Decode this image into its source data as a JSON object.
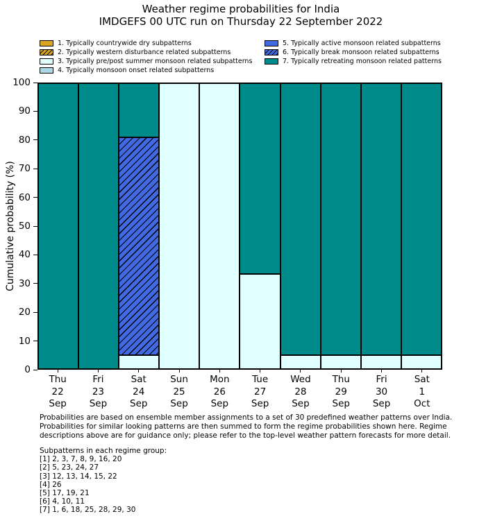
{
  "chart_data": {
    "type": "bar",
    "stacked": true,
    "title": "Weather regime probabilities for India",
    "subtitle": "IMDGEFS 00 UTC run on Thursday 22 September 2022",
    "ylabel": "Cumulative probability (%)",
    "xlabel": "",
    "ylim": [
      0,
      100
    ],
    "yticks": [
      0,
      10,
      20,
      30,
      40,
      50,
      60,
      70,
      80,
      90,
      100
    ],
    "grid": false,
    "legend_position": "top",
    "bar_edge_color": "#000000",
    "categories": [
      [
        "Thu",
        "22",
        "Sep"
      ],
      [
        "Fri",
        "23",
        "Sep"
      ],
      [
        "Sat",
        "24",
        "Sep"
      ],
      [
        "Sun",
        "25",
        "Sep"
      ],
      [
        "Mon",
        "26",
        "Sep"
      ],
      [
        "Tue",
        "27",
        "Sep"
      ],
      [
        "Wed",
        "28",
        "Sep"
      ],
      [
        "Thu",
        "29",
        "Sep"
      ],
      [
        "Fri",
        "30",
        "Sep"
      ],
      [
        "Sat",
        "1",
        "Oct"
      ]
    ],
    "regimes": [
      {
        "id": 1,
        "label": "1. Typically countrywide dry subpatterns",
        "color": "#DAA520",
        "hatch": false
      },
      {
        "id": 2,
        "label": "2. Typically western disturbance related subpatterns",
        "color": "#DAA520",
        "hatch": true
      },
      {
        "id": 3,
        "label": "3. Typically pre/post summer monsoon related subpatterns",
        "color": "#E0FFFF",
        "hatch": false
      },
      {
        "id": 4,
        "label": "4. Typically monsoon onset related subpatterns",
        "color": "#ADD8E6",
        "hatch": false
      },
      {
        "id": 5,
        "label": "5. Typically active monsoon related subpatterns",
        "color": "#4169E1",
        "hatch": false
      },
      {
        "id": 6,
        "label": "6. Typically break monsoon related subpatterns",
        "color": "#4169E1",
        "hatch": true
      },
      {
        "id": 7,
        "label": "7. Typically retreating monsoon related patterns",
        "color": "#008B8B",
        "hatch": false
      }
    ],
    "legend_columns": [
      [
        1,
        2,
        3,
        4
      ],
      [
        5,
        6,
        7
      ]
    ],
    "series": [
      {
        "name": "3. Typically pre/post summer monsoon related subpatterns",
        "regime": 3,
        "values": [
          0,
          0,
          4.8,
          100,
          100,
          33.3,
          4.8,
          4.8,
          4.8,
          4.8
        ]
      },
      {
        "name": "6. Typically break monsoon related subpatterns",
        "regime": 6,
        "values": [
          0,
          0,
          76.2,
          0,
          0,
          0,
          0,
          0,
          0,
          0
        ]
      },
      {
        "name": "7. Typically retreating monsoon related patterns",
        "regime": 7,
        "values": [
          100,
          100,
          19,
          0,
          0,
          66.7,
          95.2,
          95.2,
          95.2,
          95.2
        ]
      }
    ]
  },
  "footnote": {
    "lines": [
      "Probabilities are based on ensemble member assignments to a set of 30 predefined weather patterns over India.",
      "Probabilities for similar looking patterns are then summed to form the regime probabilities shown here. Regime",
      "descriptions above are for guidance only; please refer to the top-level weather pattern forecasts for more detail."
    ]
  },
  "subpatterns": {
    "header": "Subpatterns in each regime group:",
    "groups": [
      "[1] 2, 3, 7, 8, 9, 16, 20",
      "[2] 5, 23, 24, 27",
      "[3] 12, 13, 14, 15, 22",
      "[4] 26",
      "[5] 17, 19, 21",
      "[6] 4, 10, 11",
      "[7] 1, 6, 18, 25, 28, 29, 30"
    ]
  }
}
